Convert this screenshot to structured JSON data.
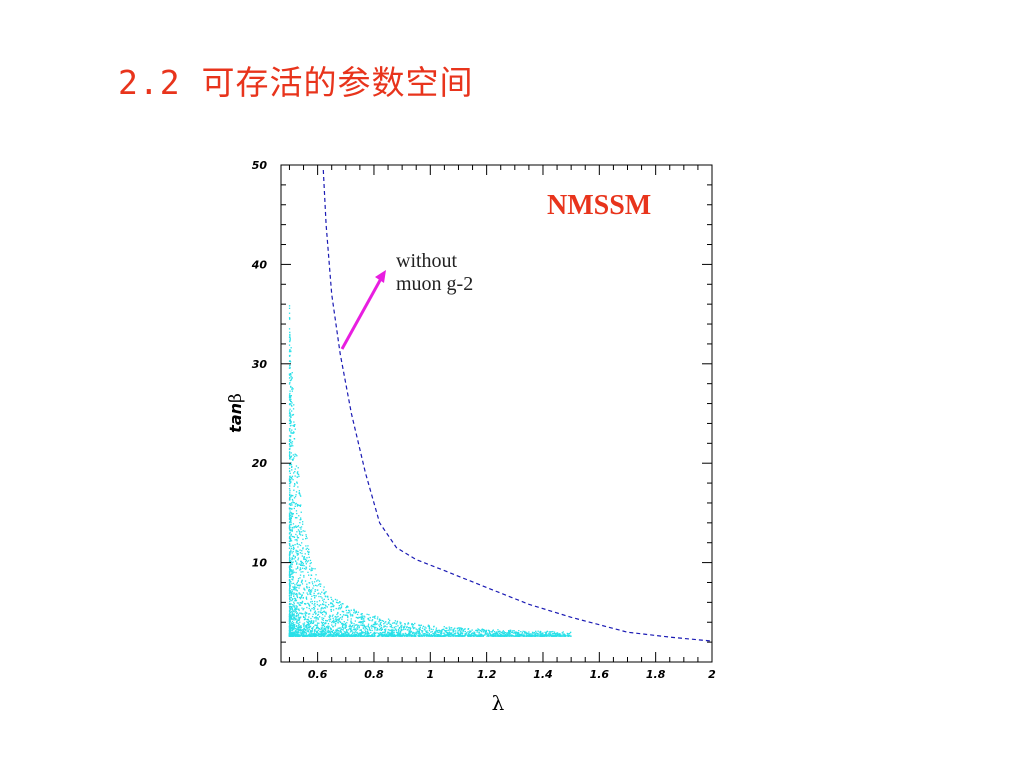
{
  "slide": {
    "title": "2.2 可存活的参数空间"
  },
  "chart_data": {
    "type": "scatter",
    "xlabel": "λ",
    "ylabel_italic": "tan",
    "ylabel_symbol": "β",
    "xlim": [
      0.47,
      2.0
    ],
    "ylim": [
      0,
      50
    ],
    "x_ticks": [
      0.6,
      0.8,
      1,
      1.2,
      1.4,
      1.6,
      1.8,
      2
    ],
    "x_tick_labels": [
      "0.6",
      "0.8",
      "1",
      "1.2",
      "1.4",
      "1.6",
      "1.8",
      "2"
    ],
    "y_ticks": [
      0,
      10,
      20,
      30,
      40,
      50
    ],
    "y_tick_labels": [
      "0",
      "10",
      "20",
      "30",
      "40",
      "50"
    ],
    "grid": false,
    "model_label": "NMSSM",
    "annotation": {
      "line1": "without",
      "line2": "muon g-2"
    },
    "boundary_curve": {
      "style": "dashed",
      "x": [
        0.62,
        0.63,
        0.65,
        0.68,
        0.72,
        0.77,
        0.82,
        0.88,
        0.95,
        1.05,
        1.2,
        1.35,
        1.5,
        1.7,
        1.85,
        2.0
      ],
      "y": [
        49.5,
        44,
        37,
        31,
        25,
        19,
        14,
        11.5,
        10.3,
        9.2,
        7.5,
        5.8,
        4.5,
        3.0,
        2.5,
        2.1
      ]
    },
    "scatter_region": {
      "description_points": [
        [
          0.5,
          28.5
        ],
        [
          0.5,
          22
        ],
        [
          0.51,
          15
        ],
        [
          0.52,
          10
        ],
        [
          0.55,
          7
        ],
        [
          0.6,
          5.5
        ],
        [
          0.7,
          4.5
        ],
        [
          0.8,
          4
        ],
        [
          1.0,
          3.5
        ],
        [
          1.2,
          3.2
        ],
        [
          1.4,
          3.0
        ],
        [
          1.5,
          2.8
        ]
      ]
    },
    "colors": {
      "scatter": "#29e0e8",
      "boundary": "#1a1ab4",
      "arrow": "#e81ee0",
      "model_label": "#e8341c"
    }
  }
}
